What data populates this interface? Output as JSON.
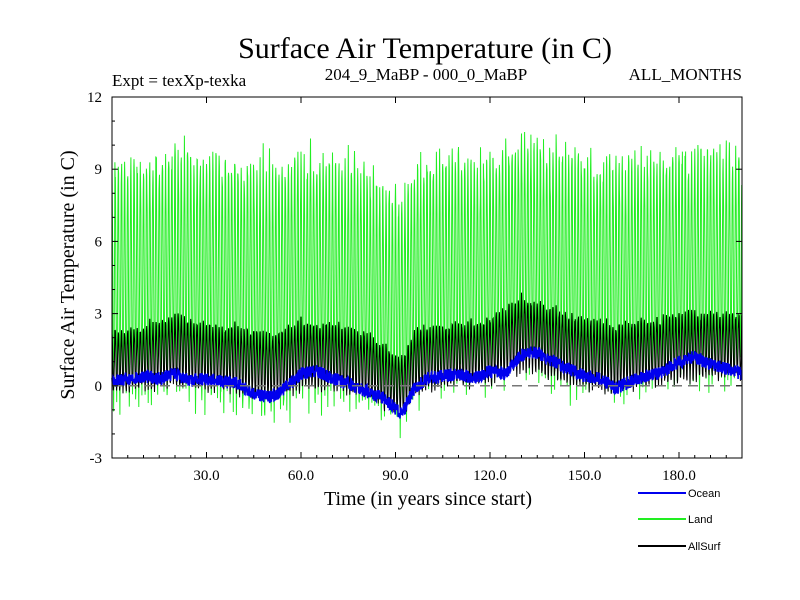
{
  "chart_data": {
    "type": "line",
    "title": "Surface Air Temperature (in C)",
    "subtitle_left": "Expt = texXp-texka",
    "subtitle_center": "204_9_MaBP - 000_0_MaBP",
    "subtitle_right": "ALL_MONTHS",
    "xlabel": "Time (in years since start)",
    "ylabel": "Surface Air Temperature (in C)",
    "xlim": [
      0,
      200
    ],
    "ylim": [
      -3,
      12
    ],
    "xticks": [
      30,
      60,
      90,
      120,
      150,
      180
    ],
    "xtick_labels": [
      "30.0",
      "60.0",
      "90.0",
      "120.0",
      "150.0",
      "180.0"
    ],
    "yticks": [
      -3,
      0,
      3,
      6,
      9,
      12
    ],
    "ytick_labels": [
      "-3",
      "0",
      "3",
      "6",
      "9",
      "12"
    ],
    "reference_line": 0,
    "series": [
      {
        "name": "Land",
        "color": "#22ee22",
        "note": "monthly values with strong seasonal cycle",
        "x": [
          0,
          10,
          20,
          30,
          40,
          50,
          60,
          70,
          80,
          88,
          92,
          96,
          100,
          110,
          120,
          130,
          140,
          150,
          160,
          170,
          180,
          190,
          200
        ],
        "upper": [
          9.7,
          9.8,
          10.3,
          10.1,
          9.9,
          9.8,
          10.2,
          10.0,
          9.7,
          8.5,
          8.2,
          9.5,
          9.9,
          10.1,
          9.9,
          10.8,
          10.4,
          10.1,
          9.9,
          10.0,
          10.2,
          10.3,
          10.3
        ],
        "lower": [
          -1.2,
          -0.9,
          -0.6,
          -1.0,
          -1.1,
          -1.6,
          -0.9,
          -1.0,
          -1.4,
          -1.9,
          -2.3,
          -1.2,
          -0.8,
          -0.6,
          -0.4,
          0.3,
          -0.4,
          -0.8,
          -0.9,
          -0.6,
          -0.4,
          -0.2,
          -0.2
        ]
      },
      {
        "name": "AllSurf",
        "color": "#000000",
        "note": "monthly values, narrower seasonal range",
        "x": [
          0,
          10,
          20,
          30,
          40,
          50,
          60,
          70,
          80,
          88,
          92,
          96,
          100,
          110,
          120,
          130,
          140,
          150,
          160,
          170,
          180,
          190,
          200
        ],
        "upper": [
          2.4,
          2.6,
          3.1,
          2.7,
          2.6,
          2.3,
          2.8,
          2.7,
          2.4,
          1.6,
          1.3,
          2.4,
          2.6,
          2.7,
          2.9,
          3.8,
          3.4,
          2.9,
          2.7,
          2.9,
          3.1,
          3.2,
          3.1
        ],
        "lower": [
          -0.4,
          -0.3,
          -0.1,
          -0.3,
          -0.4,
          -0.7,
          -0.3,
          -0.3,
          -0.6,
          -1.1,
          -1.4,
          -0.5,
          -0.3,
          -0.1,
          0.0,
          0.5,
          0.1,
          -0.2,
          -0.4,
          -0.2,
          0.1,
          0.2,
          0.2
        ]
      },
      {
        "name": "Ocean",
        "color": "#0000ee",
        "note": "monthly values, small seasonal range",
        "x": [
          0,
          5,
          10,
          15,
          20,
          25,
          30,
          35,
          40,
          45,
          50,
          55,
          60,
          65,
          70,
          75,
          80,
          85,
          88,
          92,
          96,
          100,
          105,
          110,
          115,
          120,
          125,
          130,
          135,
          140,
          145,
          150,
          155,
          160,
          165,
          170,
          175,
          180,
          185,
          190,
          195,
          200
        ],
        "values": [
          0.2,
          0.3,
          0.4,
          0.3,
          0.5,
          0.2,
          0.3,
          0.2,
          0.1,
          -0.3,
          -0.5,
          -0.1,
          0.5,
          0.6,
          0.3,
          0.1,
          -0.2,
          -0.4,
          -0.7,
          -1.2,
          -0.1,
          0.3,
          0.4,
          0.5,
          0.3,
          0.6,
          0.5,
          1.3,
          1.4,
          1.0,
          0.7,
          0.4,
          0.3,
          -0.1,
          0.2,
          0.4,
          0.6,
          1.0,
          1.2,
          0.9,
          0.7,
          0.5
        ]
      }
    ],
    "legend": [
      {
        "label": "Ocean",
        "color": "#0000ee"
      },
      {
        "label": "Land",
        "color": "#22ee22"
      },
      {
        "label": "AllSurf",
        "color": "#000000"
      }
    ]
  }
}
